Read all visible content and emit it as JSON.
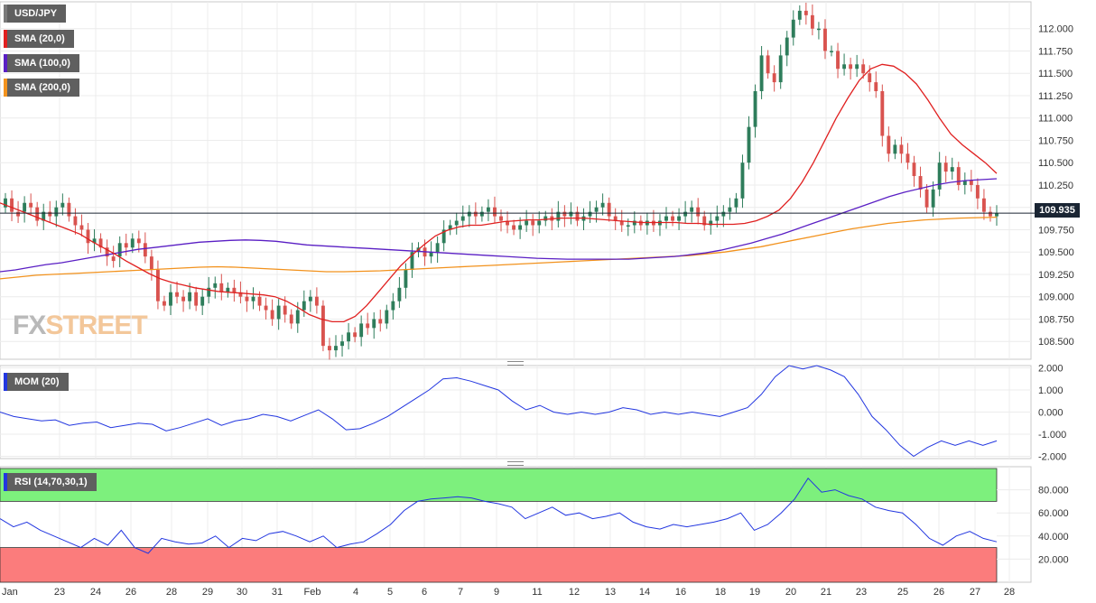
{
  "legend": {
    "symbol": "USD/JPY",
    "sma20": "SMA (20,0)",
    "sma100": "SMA (100,0)",
    "sma200": "SMA (200,0)",
    "mom": "MOM (20)",
    "rsi": "RSI (14,70,30,1)"
  },
  "watermark": {
    "fx": "FX",
    "street": "STREET"
  },
  "colors": {
    "bull": "#2e7d5b",
    "bear": "#d9534f",
    "sma20": "#e02020",
    "sma100": "#5a1fc4",
    "sma200": "#f2921d",
    "mom": "#2236e0",
    "rsi": "#2236e0",
    "overbought": "#7df07d",
    "oversold": "#fb7c7c",
    "price_line": "#1a2533"
  },
  "current_price_label": "109.935",
  "chart_data": [
    {
      "type": "candlestick",
      "title": "USD/JPY",
      "ylim": [
        108.3,
        112.3
      ],
      "yticks": [
        "112.000",
        "111.750",
        "111.500",
        "111.250",
        "111.000",
        "110.750",
        "110.500",
        "110.250",
        "110.000",
        "109.750",
        "109.500",
        "109.250",
        "109.000",
        "108.750",
        "108.500"
      ],
      "xticks": [
        "Jan",
        "23",
        "24",
        "26",
        "28",
        "29",
        "30",
        "31",
        "Feb",
        "4",
        "5",
        "6",
        "7",
        "9",
        "11",
        "12",
        "13",
        "14",
        "16",
        "18",
        "19",
        "20",
        "21",
        "23",
        "25",
        "26",
        "27",
        "28"
      ],
      "current_price": 109.935,
      "ohlc_close": [
        110.1,
        109.95,
        109.9,
        110.05,
        110.0,
        109.85,
        109.95,
        109.9,
        110.0,
        110.05,
        109.9,
        109.8,
        109.75,
        109.6,
        109.65,
        109.55,
        109.45,
        109.4,
        109.6,
        109.55,
        109.65,
        109.6,
        109.45,
        109.3,
        108.95,
        108.9,
        109.05,
        109.0,
        108.95,
        109.05,
        108.9,
        109.0,
        109.1,
        109.15,
        109.05,
        109.1,
        109.05,
        109.0,
        108.95,
        109.0,
        108.9,
        108.85,
        108.75,
        108.9,
        108.8,
        108.7,
        108.85,
        108.95,
        109.0,
        108.9,
        108.45,
        108.4,
        108.45,
        108.5,
        108.6,
        108.55,
        108.7,
        108.65,
        108.75,
        108.7,
        108.85,
        108.95,
        109.1,
        109.3,
        109.5,
        109.55,
        109.45,
        109.5,
        109.6,
        109.75,
        109.8,
        109.85,
        109.9,
        109.95,
        109.9,
        109.95,
        110.0,
        109.9,
        109.85,
        109.8,
        109.75,
        109.8,
        109.85,
        109.8,
        109.85,
        109.9,
        109.85,
        109.95,
        109.9,
        109.95,
        109.85,
        109.9,
        109.95,
        110.0,
        110.05,
        109.9,
        109.85,
        109.8,
        109.8,
        109.85,
        109.8,
        109.85,
        109.8,
        109.85,
        109.9,
        109.85,
        109.9,
        109.95,
        110.0,
        109.9,
        109.8,
        109.85,
        109.9,
        109.95,
        110.0,
        110.1,
        110.5,
        110.9,
        111.3,
        111.7,
        111.5,
        111.4,
        111.7,
        111.9,
        112.1,
        112.2,
        112.15,
        112.0,
        112.0,
        111.75,
        111.75,
        111.55,
        111.6,
        111.55,
        111.6,
        111.5,
        111.4,
        111.3,
        110.8,
        110.6,
        110.7,
        110.6,
        110.5,
        110.35,
        110.2,
        110.0,
        110.2,
        110.5,
        110.4,
        110.45,
        110.25,
        110.3,
        110.25,
        110.1,
        109.95,
        109.9,
        109.935
      ],
      "ohlc_open": [
        110.0,
        110.1,
        109.95,
        109.95,
        110.05,
        110.0,
        109.85,
        109.95,
        109.9,
        110.0,
        110.05,
        109.9,
        109.8,
        109.75,
        109.6,
        109.65,
        109.55,
        109.45,
        109.45,
        109.6,
        109.55,
        109.65,
        109.6,
        109.45,
        109.3,
        108.95,
        108.9,
        109.05,
        109.0,
        108.95,
        109.05,
        108.9,
        109.0,
        109.1,
        109.15,
        109.05,
        109.1,
        109.05,
        109.0,
        108.95,
        109.0,
        108.9,
        108.85,
        108.75,
        108.9,
        108.8,
        108.7,
        108.85,
        108.95,
        109.0,
        108.9,
        108.45,
        108.4,
        108.45,
        108.5,
        108.6,
        108.55,
        108.7,
        108.65,
        108.75,
        108.7,
        108.85,
        108.95,
        109.1,
        109.3,
        109.5,
        109.55,
        109.45,
        109.5,
        109.6,
        109.75,
        109.8,
        109.85,
        109.9,
        109.95,
        109.9,
        109.95,
        110.0,
        109.9,
        109.85,
        109.8,
        109.75,
        109.8,
        109.85,
        109.8,
        109.85,
        109.9,
        109.85,
        109.95,
        109.9,
        109.95,
        109.85,
        109.9,
        109.95,
        110.0,
        110.05,
        109.9,
        109.85,
        109.8,
        109.8,
        109.85,
        109.8,
        109.85,
        109.8,
        109.85,
        109.9,
        109.85,
        109.9,
        109.95,
        110.0,
        109.9,
        109.8,
        109.85,
        109.9,
        109.95,
        110.0,
        110.1,
        110.5,
        110.9,
        111.3,
        111.7,
        111.5,
        111.4,
        111.7,
        111.9,
        112.1,
        112.2,
        112.15,
        112.0,
        112.0,
        111.75,
        111.75,
        111.55,
        111.6,
        111.55,
        111.6,
        111.5,
        111.4,
        111.3,
        110.8,
        110.6,
        110.7,
        110.6,
        110.5,
        110.35,
        110.2,
        110.0,
        110.2,
        110.5,
        110.4,
        110.45,
        110.25,
        110.3,
        110.25,
        110.1,
        109.95,
        109.9
      ],
      "sma20": [
        110.05,
        110.0,
        109.95,
        109.9,
        109.85,
        109.8,
        109.75,
        109.7,
        109.62,
        109.55,
        109.48,
        109.4,
        109.33,
        109.26,
        109.2,
        109.16,
        109.13,
        109.1,
        109.08,
        109.06,
        109.05,
        109.04,
        109.03,
        109.02,
        109.0,
        108.95,
        108.88,
        108.8,
        108.75,
        108.72,
        108.72,
        108.78,
        108.9,
        109.05,
        109.2,
        109.35,
        109.47,
        109.58,
        109.68,
        109.74,
        109.78,
        109.8,
        109.8,
        109.82,
        109.84,
        109.85,
        109.86,
        109.86,
        109.87,
        109.88,
        109.88,
        109.88,
        109.87,
        109.86,
        109.85,
        109.84,
        109.83,
        109.83,
        109.83,
        109.83,
        109.82,
        109.82,
        109.81,
        109.81,
        109.81,
        109.82,
        109.85,
        109.9,
        109.97,
        110.1,
        110.28,
        110.5,
        110.75,
        111.0,
        111.22,
        111.42,
        111.55,
        111.6,
        111.58,
        111.5,
        111.38,
        111.2,
        111.0,
        110.82,
        110.7,
        110.6,
        110.5,
        110.38
      ],
      "sma100": [
        109.28,
        109.3,
        109.33,
        109.36,
        109.38,
        109.41,
        109.44,
        109.47,
        109.5,
        109.53,
        109.55,
        109.57,
        109.59,
        109.61,
        109.62,
        109.63,
        109.635,
        109.63,
        109.62,
        109.6,
        109.58,
        109.57,
        109.56,
        109.55,
        109.54,
        109.53,
        109.52,
        109.51,
        109.5,
        109.49,
        109.48,
        109.47,
        109.46,
        109.45,
        109.44,
        109.43,
        109.425,
        109.42,
        109.42,
        109.42,
        109.42,
        109.42,
        109.43,
        109.44,
        109.45,
        109.47,
        109.49,
        109.52,
        109.56,
        109.6,
        109.65,
        109.7,
        109.76,
        109.82,
        109.88,
        109.94,
        110.0,
        110.06,
        110.12,
        110.17,
        110.21,
        110.25,
        110.28,
        110.3,
        110.31,
        110.32
      ],
      "sma200": [
        109.2,
        109.22,
        109.24,
        109.25,
        109.26,
        109.27,
        109.28,
        109.29,
        109.3,
        109.31,
        109.32,
        109.33,
        109.335,
        109.33,
        109.32,
        109.31,
        109.3,
        109.29,
        109.28,
        109.28,
        109.285,
        109.29,
        109.3,
        109.31,
        109.32,
        109.33,
        109.34,
        109.35,
        109.36,
        109.37,
        109.38,
        109.39,
        109.4,
        109.41,
        109.42,
        109.43,
        109.44,
        109.45,
        109.46,
        109.48,
        109.5,
        109.53,
        109.56,
        109.6,
        109.64,
        109.68,
        109.72,
        109.76,
        109.79,
        109.82,
        109.84,
        109.86,
        109.87,
        109.88,
        109.885,
        109.89
      ],
      "xlabel": "",
      "ylabel": ""
    },
    {
      "type": "line",
      "title": "MOM (20)",
      "ylim": [
        -2.1,
        2.1
      ],
      "yticks": [
        "2.000",
        "1.000",
        "0.000",
        "-1.000",
        "-2.000"
      ],
      "series": [
        {
          "name": "MOM (20)",
          "values": [
            0.0,
            -0.2,
            -0.3,
            -0.4,
            -0.35,
            -0.6,
            -0.5,
            -0.45,
            -0.7,
            -0.6,
            -0.5,
            -0.55,
            -0.85,
            -0.7,
            -0.5,
            -0.3,
            -0.6,
            -0.4,
            -0.3,
            -0.1,
            -0.2,
            -0.4,
            -0.15,
            0.1,
            -0.3,
            -0.8,
            -0.75,
            -0.5,
            -0.2,
            0.2,
            0.6,
            1.0,
            1.5,
            1.55,
            1.4,
            1.2,
            1.0,
            0.5,
            0.1,
            0.3,
            0.0,
            -0.1,
            0.0,
            -0.1,
            0.0,
            0.2,
            0.1,
            -0.1,
            0.0,
            -0.1,
            0.0,
            -0.1,
            -0.2,
            0.0,
            0.2,
            0.8,
            1.6,
            2.1,
            1.95,
            2.1,
            1.9,
            1.6,
            0.8,
            -0.2,
            -0.8,
            -1.5,
            -2.0,
            -1.6,
            -1.3,
            -1.5,
            -1.3,
            -1.5,
            -1.3
          ]
        }
      ]
    },
    {
      "type": "line",
      "title": "RSI (14,70,30,1)",
      "ylim": [
        0,
        100
      ],
      "yticks": [
        "80.000",
        "60.000",
        "40.000",
        "20.000"
      ],
      "overbought": 70,
      "oversold": 30,
      "series": [
        {
          "name": "RSI (14,70,30,1)",
          "values": [
            55,
            48,
            52,
            45,
            40,
            35,
            30,
            38,
            32,
            45,
            30,
            25,
            38,
            35,
            33,
            34,
            40,
            30,
            38,
            36,
            42,
            44,
            40,
            35,
            40,
            30,
            33,
            35,
            42,
            50,
            62,
            70,
            72,
            73,
            74,
            73,
            70,
            68,
            65,
            55,
            60,
            65,
            58,
            60,
            55,
            57,
            60,
            52,
            48,
            46,
            50,
            48,
            50,
            52,
            55,
            60,
            45,
            50,
            60,
            72,
            90,
            78,
            80,
            75,
            72,
            65,
            62,
            60,
            50,
            38,
            32,
            40,
            44,
            38,
            35
          ]
        }
      ]
    }
  ]
}
